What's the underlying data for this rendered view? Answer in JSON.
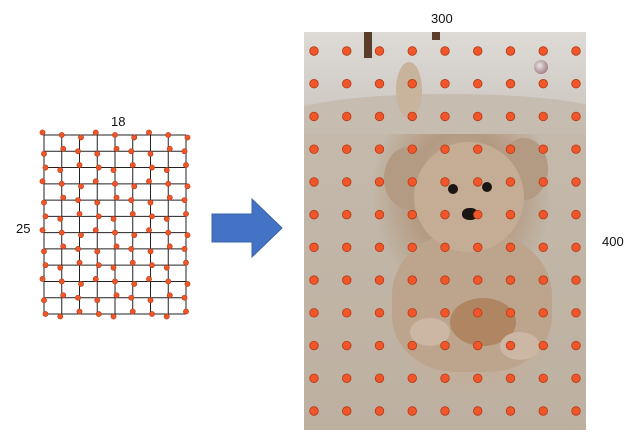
{
  "grid": {
    "width_label": "18",
    "height_label": "25",
    "cols": 9,
    "rows": 12
  },
  "image": {
    "width_label": "300",
    "height_label": "400",
    "cols": 9,
    "rows": 12
  },
  "colors": {
    "point_fill": "#f0562a",
    "point_stroke": "#b33a14",
    "grid_line": "#222222",
    "arrow": "#4472c4"
  }
}
